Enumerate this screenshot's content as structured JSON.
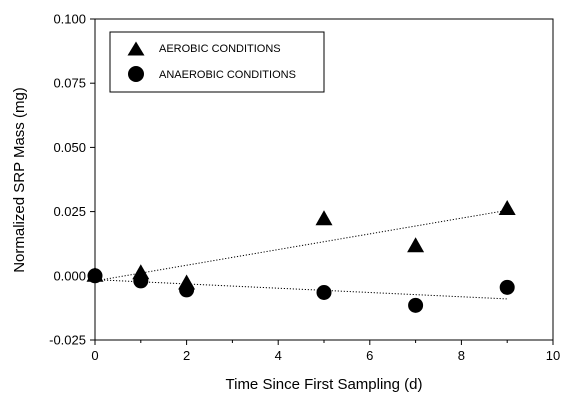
{
  "chart_data": {
    "type": "scatter",
    "title": "",
    "xlabel": "Time Since First Sampling (d)",
    "ylabel": "Normalized SRP Mass (mg)",
    "xlim": [
      0,
      10
    ],
    "ylim": [
      -0.025,
      0.1
    ],
    "x_ticks": [
      0,
      2,
      4,
      6,
      8,
      10
    ],
    "x_tick_labels": [
      "0",
      "2",
      "4",
      "6",
      "8",
      "10"
    ],
    "y_ticks": [
      -0.025,
      0,
      0.025,
      0.05,
      0.075,
      0.1
    ],
    "y_tick_labels": [
      "-0.025",
      "0.000",
      "0.025",
      "0.050",
      "0.075",
      "0.100"
    ],
    "grid": false,
    "legend_position": "top-left",
    "series": [
      {
        "name": "AEROBIC CONDITIONS",
        "marker": "triangle",
        "color": "#000000",
        "x": [
          0,
          1,
          2,
          5,
          7,
          9
        ],
        "y": [
          0.0,
          0.001,
          -0.003,
          0.022,
          0.0115,
          0.026
        ],
        "trend": {
          "x": [
            0,
            9
          ],
          "y": [
            -0.002,
            0.0255
          ]
        }
      },
      {
        "name": "ANAEROBIC CONDITIONS",
        "marker": "circle",
        "color": "#000000",
        "x": [
          0,
          1,
          2,
          5,
          7,
          9
        ],
        "y": [
          0.0,
          -0.002,
          -0.0055,
          -0.0065,
          -0.0115,
          -0.0045
        ],
        "trend": {
          "x": [
            0,
            9
          ],
          "y": [
            -0.0015,
            -0.009
          ]
        }
      }
    ]
  }
}
